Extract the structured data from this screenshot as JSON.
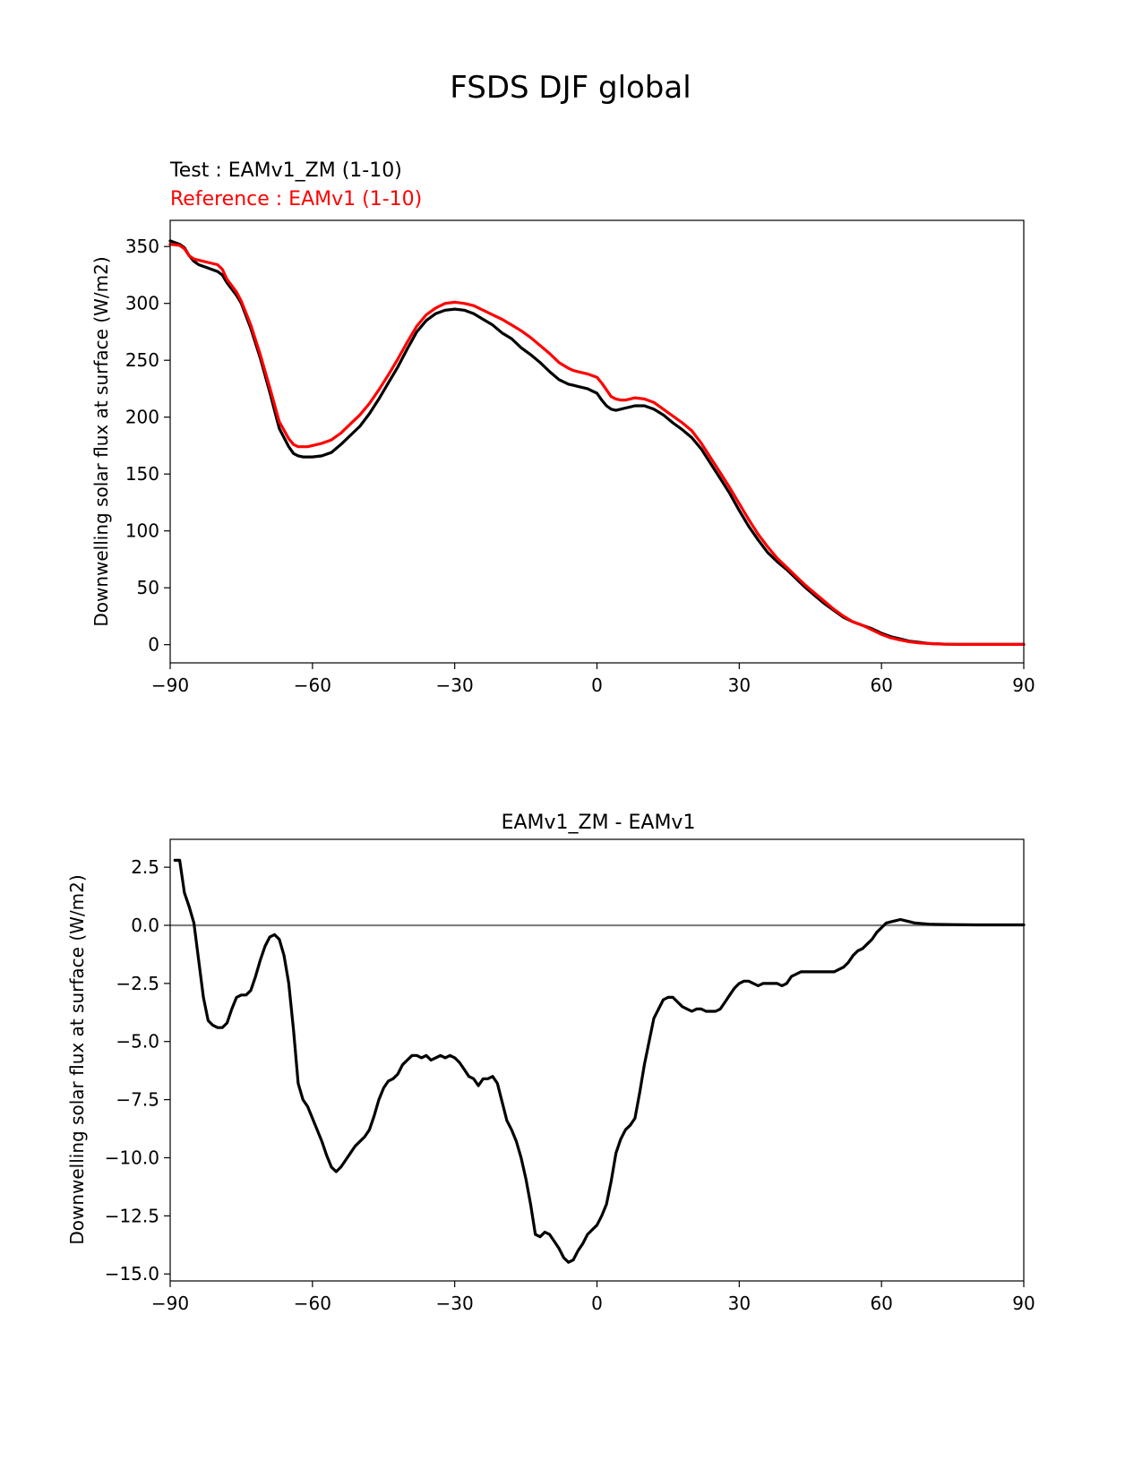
{
  "figure": {
    "title": "FSDS DJF global"
  },
  "chart_data": [
    {
      "type": "line",
      "test_label": "Test : EAMv1_ZM (1-10)",
      "reference_label": "Reference : EAMv1 (1-10)",
      "xlabel": "",
      "ylabel": "Downwelling solar flux at surface (W/m2)",
      "xlim": [
        -90,
        90
      ],
      "ylim": [
        -16,
        373
      ],
      "xticks": [
        -90,
        -60,
        -30,
        0,
        30,
        60,
        90
      ],
      "xtick_labels": [
        "−90",
        "−60",
        "−30",
        "0",
        "30",
        "60",
        "90"
      ],
      "yticks": [
        0,
        50,
        100,
        150,
        200,
        250,
        300,
        350
      ],
      "ytick_labels": [
        "0",
        "50",
        "100",
        "150",
        "200",
        "250",
        "300",
        "350"
      ],
      "grid": false,
      "series": [
        {
          "name": "Test : EAMv1_ZM (1-10)",
          "color": "#000000",
          "x": [
            -90,
            -88,
            -87,
            -86,
            -85,
            -84,
            -82,
            -80,
            -79,
            -78,
            -76,
            -75,
            -73,
            -71,
            -69,
            -67,
            -65,
            -64,
            -63,
            -62,
            -61,
            -60,
            -58,
            -56,
            -54,
            -52,
            -50,
            -48,
            -46,
            -44,
            -42,
            -40,
            -38,
            -36,
            -34,
            -32,
            -30,
            -28,
            -26,
            -24,
            -22,
            -20,
            -18,
            -16,
            -14,
            -12,
            -10,
            -8,
            -6,
            -5,
            -4,
            -2,
            0,
            1,
            2,
            3,
            4,
            5,
            6,
            7,
            8,
            10,
            12,
            14,
            16,
            18,
            20,
            22,
            24,
            26,
            28,
            30,
            32,
            34,
            36,
            38,
            40,
            42,
            44,
            46,
            48,
            50,
            52,
            54,
            56,
            58,
            60,
            62,
            64,
            66,
            68,
            70,
            72,
            74,
            76,
            78,
            80,
            82,
            84,
            86,
            88,
            90
          ],
          "values": [
            355,
            352,
            349,
            342,
            337,
            334,
            331,
            328,
            325,
            318,
            307,
            300,
            278,
            252,
            222,
            190,
            174,
            168,
            166,
            165,
            165,
            165,
            166,
            169,
            176,
            184,
            192,
            203,
            216,
            230,
            244,
            260,
            275,
            285,
            291,
            294,
            295,
            294,
            291,
            286,
            281,
            274,
            269,
            261,
            255,
            248,
            240,
            233,
            229,
            228,
            227,
            225,
            221,
            215,
            210,
            207,
            206,
            207,
            208,
            209,
            210,
            210,
            207,
            202,
            195,
            189,
            182,
            172,
            159,
            146,
            133,
            118,
            104,
            92,
            81,
            73,
            66,
            58,
            50,
            43,
            36,
            30,
            24,
            20,
            17,
            14,
            10,
            7,
            5,
            3,
            2,
            1,
            0.6,
            0.4,
            0.3,
            0.2,
            0.2,
            0.2,
            0.2,
            0.2,
            0.2,
            0.2
          ]
        },
        {
          "name": "Reference : EAMv1 (1-10)",
          "color": "#ff0000",
          "x": [
            -90,
            -88,
            -87,
            -86,
            -85,
            -84,
            -82,
            -80,
            -79,
            -78,
            -76,
            -75,
            -73,
            -71,
            -69,
            -67,
            -65,
            -64,
            -63,
            -62,
            -61,
            -60,
            -58,
            -56,
            -54,
            -52,
            -50,
            -48,
            -46,
            -44,
            -42,
            -40,
            -38,
            -36,
            -34,
            -32,
            -30,
            -28,
            -26,
            -24,
            -22,
            -20,
            -18,
            -16,
            -14,
            -12,
            -10,
            -8,
            -6,
            -5,
            -4,
            -2,
            0,
            1,
            2,
            3,
            4,
            5,
            6,
            7,
            8,
            10,
            12,
            14,
            16,
            18,
            20,
            22,
            24,
            26,
            28,
            30,
            32,
            34,
            36,
            38,
            40,
            42,
            44,
            46,
            48,
            50,
            52,
            54,
            56,
            58,
            60,
            62,
            64,
            66,
            68,
            70,
            72,
            74,
            76,
            78,
            80,
            82,
            84,
            86,
            88,
            90
          ],
          "values": [
            352,
            351,
            348,
            342,
            339,
            338,
            336,
            334,
            330,
            321,
            310,
            302,
            281,
            255,
            226,
            196,
            181,
            176,
            174,
            174,
            174,
            175,
            177,
            180,
            186,
            194,
            202,
            212,
            224,
            237,
            251,
            266,
            280,
            290,
            296,
            300,
            301,
            300,
            298,
            294,
            290,
            286,
            281,
            276,
            270,
            263,
            256,
            248,
            243,
            241,
            240,
            238,
            235,
            230,
            224,
            218,
            216,
            215,
            215,
            216,
            217,
            216,
            213,
            207,
            201,
            195,
            188,
            177,
            164,
            151,
            138,
            124,
            110,
            97,
            86,
            76,
            68,
            60,
            52,
            45,
            38,
            31,
            25,
            20,
            17,
            13,
            9,
            6,
            4,
            2.5,
            1.5,
            1,
            0.6,
            0.4,
            0.3,
            0.2,
            0.2,
            0.2,
            0.2,
            0.2,
            0.2,
            0.2
          ]
        }
      ]
    },
    {
      "type": "line",
      "title": "EAMv1_ZM - EAMv1",
      "xlabel": "",
      "ylabel": "Downwelling solar flux at surface (W/m2)",
      "xlim": [
        -90,
        90
      ],
      "ylim": [
        -15.3,
        3.7
      ],
      "xticks": [
        -90,
        -60,
        -30,
        0,
        30,
        60,
        90
      ],
      "xtick_labels": [
        "−90",
        "−60",
        "−30",
        "0",
        "30",
        "60",
        "90"
      ],
      "yticks": [
        2.5,
        0,
        -2.5,
        -5,
        -7.5,
        -10,
        -12.5,
        -15
      ],
      "ytick_labels": [
        "2.5",
        "0.0",
        "−2.5",
        "−5.0",
        "−7.5",
        "−10.0",
        "−12.5",
        "−15.0"
      ],
      "grid": false,
      "zero_line": {
        "value": 0,
        "color": "#808080"
      },
      "series": [
        {
          "name": "EAMv1_ZM - EAMv1",
          "color": "#000000",
          "x": [
            -89,
            -88,
            -87,
            -86,
            -85,
            -84,
            -83,
            -82,
            -81,
            -80,
            -79,
            -78,
            -77,
            -76,
            -75,
            -74,
            -73,
            -72,
            -71,
            -70,
            -69,
            -68,
            -67,
            -66,
            -65,
            -64,
            -63,
            -62,
            -61,
            -60,
            -59,
            -58,
            -57,
            -56,
            -55,
            -54,
            -53,
            -52,
            -51,
            -50,
            -49,
            -48,
            -47,
            -46,
            -45,
            -44,
            -43,
            -42,
            -41,
            -40,
            -39,
            -38,
            -37,
            -36,
            -35,
            -34,
            -33,
            -32,
            -31,
            -30,
            -29,
            -28,
            -27,
            -26,
            -25,
            -24,
            -23,
            -22,
            -21,
            -20,
            -19,
            -18,
            -17,
            -16,
            -15,
            -14,
            -13,
            -12,
            -11,
            -10,
            -9,
            -8,
            -7,
            -6,
            -5,
            -4,
            -3,
            -2,
            -1,
            0,
            1,
            2,
            3,
            4,
            5,
            6,
            7,
            8,
            9,
            10,
            11,
            12,
            13,
            14,
            15,
            16,
            17,
            18,
            19,
            20,
            21,
            22,
            23,
            24,
            25,
            26,
            27,
            28,
            29,
            30,
            31,
            32,
            33,
            34,
            35,
            36,
            37,
            38,
            39,
            40,
            41,
            42,
            43,
            44,
            45,
            46,
            47,
            48,
            49,
            50,
            51,
            52,
            53,
            54,
            55,
            56,
            57,
            58,
            59,
            60,
            61,
            62,
            63,
            64,
            65,
            66,
            67,
            68,
            70,
            72,
            75,
            80,
            85,
            90
          ],
          "values": [
            2.8,
            2.8,
            1.4,
            0.8,
            0.1,
            -1.5,
            -3.1,
            -4.1,
            -4.3,
            -4.4,
            -4.4,
            -4.2,
            -3.6,
            -3.1,
            -3.0,
            -3.0,
            -2.8,
            -2.2,
            -1.5,
            -0.9,
            -0.5,
            -0.4,
            -0.6,
            -1.3,
            -2.5,
            -4.5,
            -6.8,
            -7.5,
            -7.8,
            -8.3,
            -8.8,
            -9.3,
            -9.9,
            -10.4,
            -10.6,
            -10.4,
            -10.1,
            -9.8,
            -9.5,
            -9.3,
            -9.1,
            -8.8,
            -8.2,
            -7.5,
            -7.0,
            -6.7,
            -6.6,
            -6.4,
            -6.0,
            -5.8,
            -5.6,
            -5.6,
            -5.7,
            -5.6,
            -5.8,
            -5.7,
            -5.6,
            -5.7,
            -5.6,
            -5.7,
            -5.9,
            -6.2,
            -6.5,
            -6.6,
            -6.9,
            -6.6,
            -6.6,
            -6.5,
            -6.8,
            -7.6,
            -8.4,
            -8.8,
            -9.3,
            -10.0,
            -10.9,
            -12.0,
            -13.3,
            -13.4,
            -13.2,
            -13.3,
            -13.6,
            -13.9,
            -14.3,
            -14.5,
            -14.4,
            -14.0,
            -13.7,
            -13.3,
            -13.1,
            -12.9,
            -12.5,
            -12.0,
            -11.0,
            -9.8,
            -9.2,
            -8.8,
            -8.6,
            -8.3,
            -7.2,
            -6.0,
            -5.0,
            -4.0,
            -3.6,
            -3.2,
            -3.1,
            -3.1,
            -3.3,
            -3.5,
            -3.6,
            -3.7,
            -3.6,
            -3.6,
            -3.7,
            -3.7,
            -3.7,
            -3.6,
            -3.3,
            -3.0,
            -2.7,
            -2.5,
            -2.4,
            -2.4,
            -2.5,
            -2.6,
            -2.5,
            -2.5,
            -2.5,
            -2.5,
            -2.6,
            -2.5,
            -2.2,
            -2.1,
            -2.0,
            -2.0,
            -2.0,
            -2.0,
            -2.0,
            -2.0,
            -2.0,
            -2.0,
            -1.9,
            -1.8,
            -1.6,
            -1.3,
            -1.1,
            -1.0,
            -0.8,
            -0.6,
            -0.3,
            -0.1,
            0.1,
            0.15,
            0.2,
            0.25,
            0.2,
            0.15,
            0.1,
            0.08,
            0.05,
            0.04,
            0.03,
            0.02,
            0.02,
            0.02
          ]
        }
      ]
    }
  ]
}
